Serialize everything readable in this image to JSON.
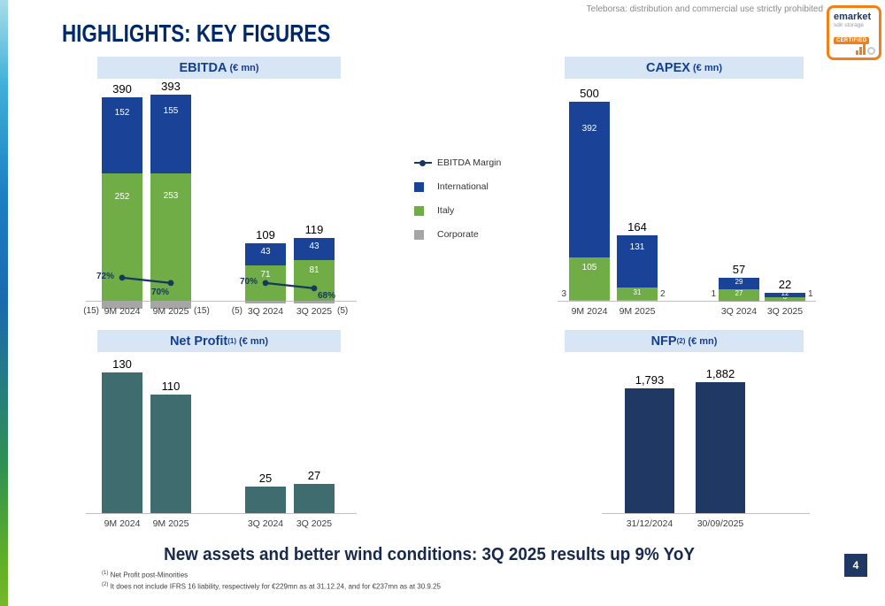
{
  "page": {
    "title": "HIGHLIGHTS: KEY FIGURES",
    "disclaimer": "Teleborsa: distribution and commercial use strictly prohibited",
    "headline": "New assets and better wind conditions: 3Q 2025 results up 9% YoY",
    "page_number": "4",
    "footnotes": [
      {
        "sup": "(1)",
        "text": " Net Profit post-Minorities"
      },
      {
        "sup": "(2)",
        "text": " It does not include IFRS 16 liability, respectively for €229mn as at 31.12.24, and for €237mn as at 30.9.25"
      }
    ]
  },
  "logo": {
    "name": "emarket",
    "subtitle": "sdir storage",
    "badge": "CERTIFIED"
  },
  "legend": [
    {
      "label": "EBITDA Margin",
      "marker": "line",
      "color": "#17375e"
    },
    {
      "label": "International",
      "marker": "square",
      "color": "#1a4297"
    },
    {
      "label": "Italy",
      "marker": "square",
      "color": "#70ad47"
    },
    {
      "label": "Corporate",
      "marker": "square",
      "color": "#a6a6a6"
    }
  ],
  "colors": {
    "international": "#1a4297",
    "italy": "#70ad47",
    "corporate": "#a6a6a6",
    "net_profit": "#3f6c6e",
    "nfp": "#1f3864",
    "margin_line": "#17375e",
    "header_bg": "#d8e5f4",
    "header_text": "#123f8f",
    "accent_navy": "#00296b",
    "logo_orange": "#f08019"
  },
  "chart_data": [
    {
      "id": "ebitda",
      "type": "bar",
      "stacked": true,
      "title": "EBITDA",
      "title_sup": "",
      "unit": "(€ mn)",
      "categories": [
        "9M 2024",
        "9M 2025",
        "3Q 2024",
        "3Q 2025"
      ],
      "series": [
        {
          "name": "Corporate",
          "values": [
            -15,
            -15,
            -5,
            -5
          ],
          "outside_labels": [
            "(15)",
            "(15)",
            "(5)",
            "(5)"
          ]
        },
        {
          "name": "Italy",
          "values": [
            252,
            253,
            71,
            81
          ]
        },
        {
          "name": "International",
          "values": [
            152,
            155,
            43,
            43
          ]
        }
      ],
      "totals": [
        "390",
        "393",
        "109",
        "119"
      ],
      "line": {
        "name": "EBITDA Margin",
        "unit": "%",
        "values": [
          72,
          70,
          70,
          68
        ],
        "labels": [
          "72%",
          "70%",
          "70%",
          "68%"
        ]
      }
    },
    {
      "id": "capex",
      "type": "bar",
      "stacked": true,
      "title": "CAPEX",
      "title_sup": "",
      "unit": "(€ mn)",
      "categories": [
        "9M 2024",
        "9M 2025",
        "3Q 2024",
        "3Q 2025"
      ],
      "series": [
        {
          "name": "Corporate",
          "values": [
            3,
            2,
            1,
            1
          ],
          "outside_labels": [
            "3",
            "2",
            "1",
            "1"
          ]
        },
        {
          "name": "Italy",
          "values": [
            105,
            31,
            27,
            8
          ]
        },
        {
          "name": "International",
          "values": [
            392,
            131,
            29,
            12
          ]
        }
      ],
      "totals": [
        "500",
        "164",
        "57",
        "22"
      ]
    },
    {
      "id": "net_profit",
      "type": "bar",
      "stacked": false,
      "title": "Net Profit",
      "title_sup": "(1)",
      "unit": "(€ mn)",
      "categories": [
        "9M 2024",
        "9M 2025",
        "3Q 2024",
        "3Q 2025"
      ],
      "values": [
        130,
        110,
        25,
        27
      ],
      "value_labels": [
        "130",
        "110",
        "25",
        "27"
      ]
    },
    {
      "id": "nfp",
      "type": "bar",
      "stacked": false,
      "title": "NFP",
      "title_sup": "(2)",
      "unit": "(€ mn)",
      "categories": [
        "31/12/2024",
        "30/09/2025"
      ],
      "values": [
        1793,
        1882
      ],
      "value_labels": [
        "1,793",
        "1,882"
      ]
    }
  ]
}
